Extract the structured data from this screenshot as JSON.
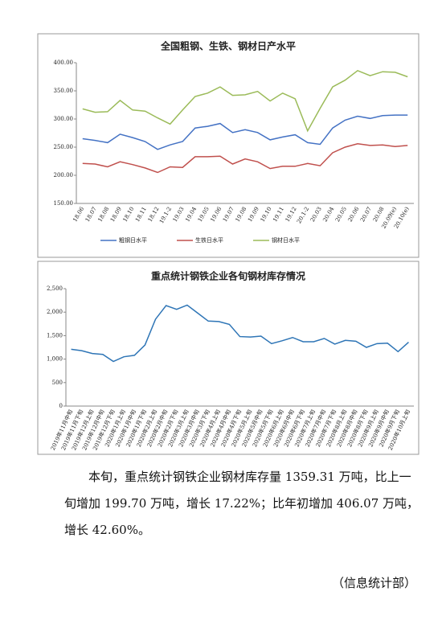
{
  "chart_data": [
    {
      "type": "line",
      "title": "全国粗钢、生铁、钢材日产水平",
      "categories": [
        "18.06",
        "18.07",
        "18.08",
        "18.09",
        "18.10",
        "18.11",
        "18.12",
        "19.1-2",
        "19.03",
        "19.04",
        "19.05",
        "19.06",
        "19.07",
        "19.08",
        "19.09",
        "19.10",
        "19.11",
        "19.12",
        "20.1-2",
        "20.03",
        "20.04",
        "20.05",
        "20.06",
        "20.07",
        "20.08",
        "20.09(e)",
        "20.10(e)"
      ],
      "series": [
        {
          "name": "粗钢日水平",
          "color": "#4472c4",
          "values": [
            265,
            262,
            258,
            273,
            267,
            260,
            246,
            254,
            260,
            284,
            287,
            292,
            276,
            281,
            276,
            263,
            268,
            272,
            258,
            255,
            284,
            298,
            305,
            301,
            306,
            307,
            307
          ]
        },
        {
          "name": "生铁日水平",
          "color": "#c0504d",
          "values": [
            221,
            220,
            215,
            224,
            219,
            213,
            205,
            215,
            214,
            233,
            233,
            234,
            220,
            229,
            224,
            212,
            216,
            216,
            221,
            217,
            240,
            250,
            256,
            253,
            254,
            251,
            253
          ]
        },
        {
          "name": "钢材日水平",
          "color": "#9bbb59",
          "values": [
            318,
            312,
            313,
            333,
            316,
            314,
            302,
            291,
            316,
            340,
            346,
            357,
            342,
            343,
            349,
            332,
            346,
            336,
            279,
            319,
            357,
            369,
            386,
            377,
            384,
            383,
            375
          ]
        }
      ],
      "ylim": [
        150,
        400
      ],
      "yticks": [
        {
          "value": 150,
          "label": "150.00"
        },
        {
          "value": 200,
          "label": "200.00"
        },
        {
          "value": 250,
          "label": "250.00"
        },
        {
          "value": 300,
          "label": "300.00"
        },
        {
          "value": 350,
          "label": "350.00"
        },
        {
          "value": 400,
          "label": "400.00"
        }
      ],
      "grid": false,
      "legend": "bottom"
    },
    {
      "type": "line",
      "title": "重点统计钢铁企业各旬钢材库存情况",
      "color": "#2e75b6",
      "categories": [
        "2019年11月中旬",
        "2019年11月下旬",
        "2019年12月上旬",
        "2019年12月中旬",
        "2019年12月下旬",
        "2020年1月上旬",
        "2020年1月中旬",
        "2020年1月下旬",
        "2020年2月上旬",
        "2020年2月中旬",
        "2020年2月下旬",
        "2020年3月上旬",
        "2020年3月中旬",
        "2020年3月下旬",
        "2020年4月上旬",
        "2020年4月中旬",
        "2020年4月下旬",
        "2020年5月上旬",
        "2020年5月中旬",
        "2020年5月下旬",
        "2020年6月上旬",
        "2020年6月中旬",
        "2020年6月下旬",
        "2020年7月上旬",
        "2020年7月中旬",
        "2020年7月下旬",
        "2020年8月上旬",
        "2020年8月中旬",
        "2020年8月下旬",
        "2020年9月上旬",
        "2020年9月中旬",
        "2020年9月下旬",
        "2020年10月上旬"
      ],
      "values": [
        1210,
        1180,
        1120,
        1100,
        950,
        1050,
        1080,
        1300,
        1850,
        2140,
        2060,
        2150,
        1980,
        1810,
        1800,
        1740,
        1480,
        1470,
        1490,
        1330,
        1390,
        1460,
        1370,
        1370,
        1440,
        1320,
        1400,
        1380,
        1250,
        1330,
        1340,
        1159.61,
        1359.31
      ],
      "ylim": [
        0,
        2500
      ],
      "yticks": [
        0,
        500,
        {
          "value": 1000,
          "label": "1,000"
        },
        {
          "value": 1500,
          "label": "1,500"
        },
        {
          "value": 2000,
          "label": "2,000"
        },
        {
          "value": 2500,
          "label": "2,500"
        }
      ],
      "grid": false
    }
  ],
  "body": {
    "paragraph": "本旬，重点统计钢铁企业钢材库存量 1359.31 万吨，比上一旬增加 199.70 万吨，增长 17.22%；比年初增加 406.07 万吨，增长 42.60%。",
    "signature": "（信息统计部）"
  }
}
